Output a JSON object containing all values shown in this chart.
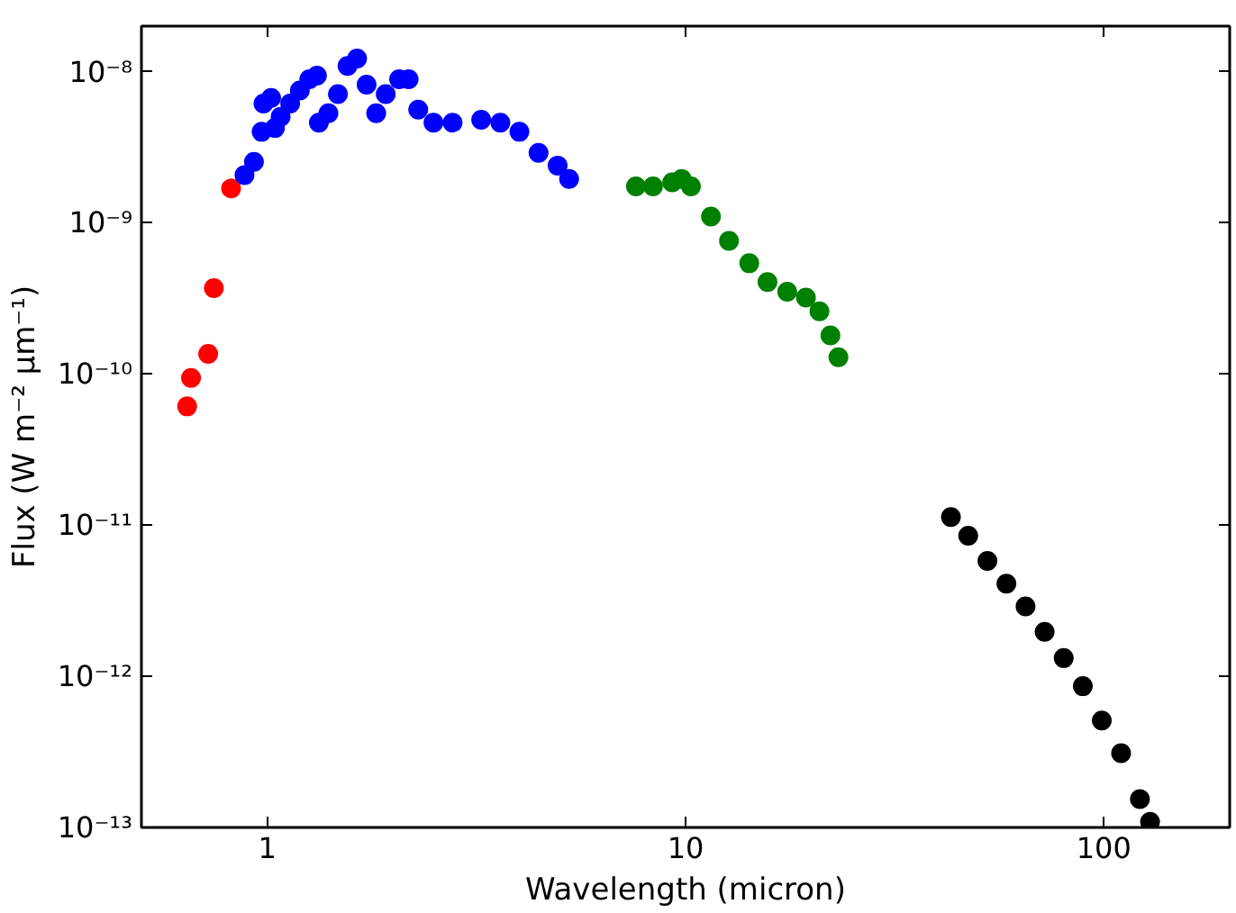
{
  "chart_data": {
    "type": "scatter",
    "xlabel": "Wavelength (micron)",
    "ylabel": "Flux (W m⁻² μm⁻¹)",
    "log": "xy",
    "grid": false,
    "marker": "circle",
    "xlim": [
      0.5,
      200
    ],
    "ylim": [
      1e-13,
      2e-08
    ],
    "xticks": [
      1,
      10,
      100
    ],
    "yticks": [
      {
        "value": 1e-13,
        "label": "10⁻¹³"
      },
      {
        "value": 1e-12,
        "label": "10⁻¹²"
      },
      {
        "value": 1e-11,
        "label": "10⁻¹¹"
      },
      {
        "value": 1e-10,
        "label": "10⁻¹⁰"
      },
      {
        "value": 1e-09,
        "label": "10⁻⁹"
      },
      {
        "value": 1e-08,
        "label": "10⁻⁸"
      }
    ],
    "series": [
      {
        "color": "#ff0000",
        "x": [
          0.643,
          0.657,
          0.722,
          0.745,
          0.819
        ],
        "values": [
          6.1e-11,
          9.4e-11,
          1.36e-10,
          3.7e-10,
          1.69e-09
        ]
      },
      {
        "color": "#0000ff",
        "x": [
          0.882,
          0.929,
          0.969,
          0.979,
          1.021,
          1.043,
          1.076,
          1.134,
          1.196,
          1.26,
          1.314,
          1.328,
          1.4,
          1.475,
          1.555,
          1.639,
          1.727,
          1.821,
          1.919,
          2.066,
          2.177,
          2.295,
          2.496,
          2.773,
          3.246,
          3.607,
          4.006,
          4.451,
          4.944,
          5.266
        ],
        "values": [
          2.07e-09,
          2.53e-09,
          4e-09,
          6.15e-09,
          6.7e-09,
          4.24e-09,
          5.03e-09,
          6.15e-09,
          7.5e-09,
          8.9e-09,
          9.4e-09,
          4.6e-09,
          5.3e-09,
          7.1e-09,
          1.09e-08,
          1.22e-08,
          8.2e-09,
          5.3e-09,
          7.1e-09,
          8.9e-09,
          8.9e-09,
          5.6e-09,
          4.6e-09,
          4.6e-09,
          4.8e-09,
          4.6e-09,
          4e-09,
          2.9e-09,
          2.39e-09,
          1.95e-09
        ]
      },
      {
        "color": "#008000",
        "x": [
          7.61,
          8.36,
          9.29,
          9.79,
          10.3,
          11.5,
          12.7,
          14.2,
          15.7,
          17.5,
          19.4,
          20.9,
          22.2,
          23.2
        ],
        "values": [
          1.74e-09,
          1.74e-09,
          1.85e-09,
          1.95e-09,
          1.74e-09,
          1.1e-09,
          7.6e-10,
          5.4e-10,
          4.05e-10,
          3.5e-10,
          3.2e-10,
          2.6e-10,
          1.8e-10,
          1.29e-10
        ]
      },
      {
        "color": "#000000",
        "x": [
          43.1,
          47.4,
          52.7,
          58.5,
          65.0,
          72.2,
          80.2,
          89.1,
          98.9,
          110,
          122,
          129
        ],
        "values": [
          1.13e-11,
          8.5e-12,
          5.8e-12,
          4.1e-12,
          2.9e-12,
          1.97e-12,
          1.32e-12,
          8.6e-13,
          5.1e-13,
          3.1e-13,
          1.54e-13,
          1.09e-13
        ]
      }
    ]
  }
}
